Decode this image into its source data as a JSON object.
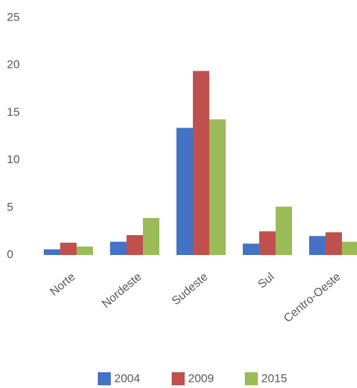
{
  "chart_data": {
    "type": "bar",
    "categories": [
      "Norte",
      "Nordeste",
      "Sudeste",
      "Sul",
      "Centro-Oeste"
    ],
    "series": [
      {
        "name": "2004",
        "color": "#4472c4",
        "values": [
          0.6,
          1.4,
          13.4,
          1.2,
          2.0
        ]
      },
      {
        "name": "2009",
        "color": "#c0504d",
        "values": [
          1.3,
          2.1,
          19.4,
          2.5,
          2.4
        ]
      },
      {
        "name": "2015",
        "color": "#9bbb59",
        "values": [
          0.9,
          3.9,
          14.3,
          5.1,
          1.4
        ]
      }
    ],
    "ylim": [
      0,
      25
    ],
    "yticks": [
      0,
      5,
      10,
      15,
      20,
      25
    ],
    "grid": false,
    "legend": "bottom"
  }
}
